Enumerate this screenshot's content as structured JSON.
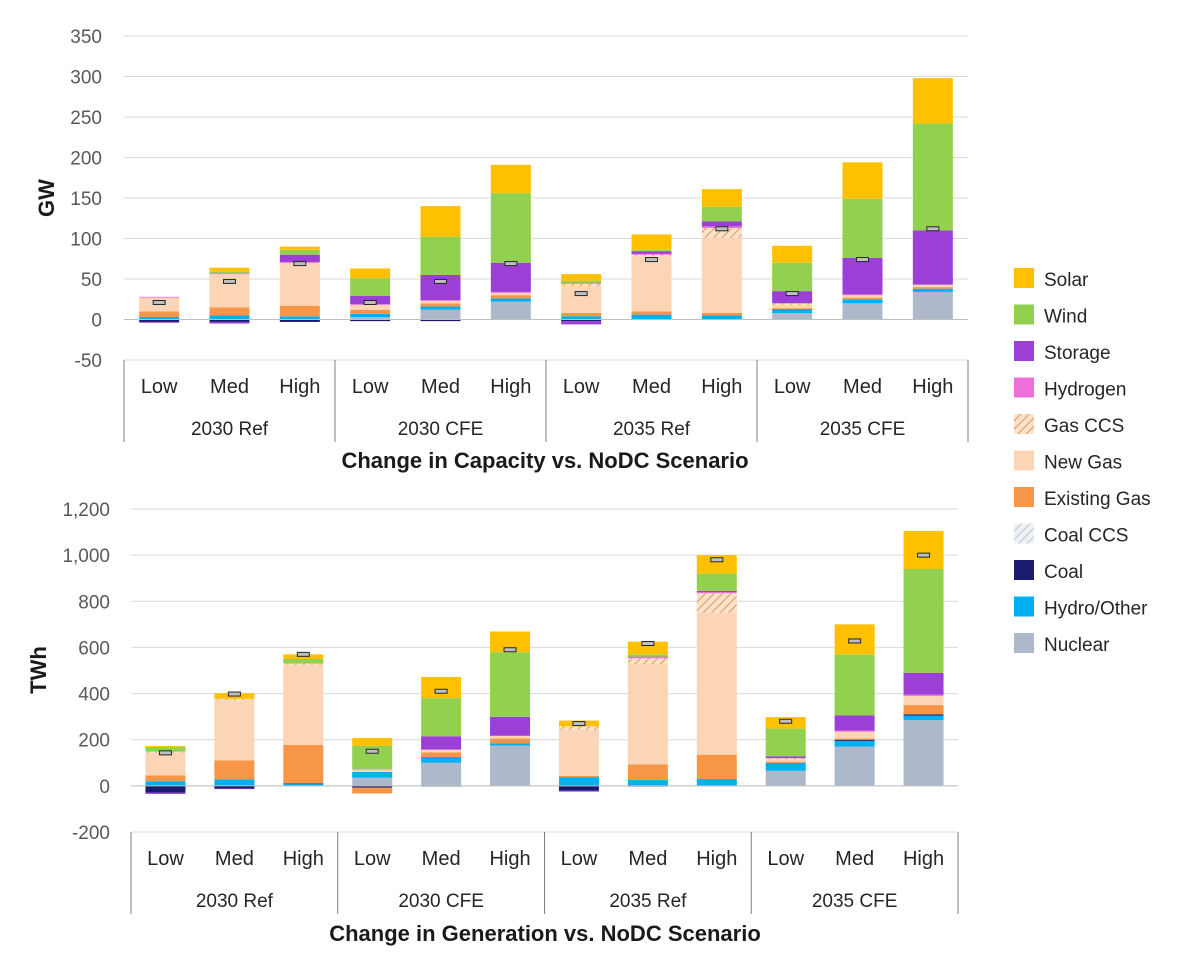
{
  "colors": {
    "Solar": "#FFC000",
    "Wind": "#92D050",
    "Storage": "#9B3FD6",
    "Hydrogen": "#EE6FD9",
    "Gas CCS": "#F6C49A",
    "New Gas": "#FBD5B5",
    "Existing Gas": "#F79646",
    "Coal CCS": "#D3DDE3",
    "Coal": "#1A1A6E",
    "Hydro/Other": "#00B0F0",
    "Nuclear": "#ADB9CA"
  },
  "legend": [
    "Solar",
    "Wind",
    "Storage",
    "Hydrogen",
    "Gas CCS",
    "New Gas",
    "Existing Gas",
    "Coal CCS",
    "Coal",
    "Hydro/Other",
    "Nuclear"
  ],
  "chart_data": [
    {
      "type": "bar",
      "stacked": true,
      "title": "Change in Capacity vs. NoDC Scenario",
      "xlabel": "Change in Capacity vs. NoDC Scenario",
      "ylabel": "GW",
      "ylim": [
        -50,
        350
      ],
      "yticks": [
        -50,
        0,
        50,
        100,
        150,
        200,
        250,
        300,
        350
      ],
      "yticklabels": [
        "-50",
        "0",
        "50",
        "100",
        "150",
        "200",
        "250",
        "300",
        "350"
      ],
      "groups": [
        "2030 Ref",
        "2030 CFE",
        "2035 Ref",
        "2035 CFE"
      ],
      "categories": [
        "Low",
        "Med",
        "High",
        "Low",
        "Med",
        "High",
        "Low",
        "Med",
        "High",
        "Low",
        "Med",
        "High"
      ],
      "series": [
        {
          "name": "Nuclear",
          "values": [
            0,
            0,
            0,
            3,
            12,
            22,
            0,
            0,
            0,
            8,
            20,
            34
          ]
        },
        {
          "name": "Hydro/Other",
          "values": [
            3,
            5,
            4,
            4,
            4,
            4,
            4,
            6,
            5,
            5,
            5,
            4
          ]
        },
        {
          "name": "Coal",
          "values": [
            -3,
            -3,
            -3,
            -2,
            -2,
            0,
            -2,
            0,
            0,
            0,
            0,
            0
          ]
        },
        {
          "name": "Coal CCS",
          "values": [
            0,
            0,
            0,
            0,
            0,
            0,
            0,
            0,
            0,
            0,
            0,
            0
          ]
        },
        {
          "name": "Existing Gas",
          "values": [
            7,
            10,
            13,
            5,
            4,
            4,
            4,
            4,
            3,
            1,
            2,
            2
          ]
        },
        {
          "name": "New Gas",
          "values": [
            17,
            41,
            53,
            6,
            3,
            3,
            33,
            68,
            93,
            4,
            3,
            3
          ]
        },
        {
          "name": "Gas CCS",
          "values": [
            0,
            0,
            0,
            0,
            0,
            0,
            3,
            2,
            12,
            2,
            0,
            0
          ]
        },
        {
          "name": "Hydrogen",
          "values": [
            1,
            1,
            1,
            1,
            1,
            1,
            1,
            1,
            2,
            0,
            1,
            0
          ]
        },
        {
          "name": "Storage",
          "values": [
            -1,
            -2,
            9,
            10,
            31,
            36,
            -4,
            3,
            6,
            15,
            45,
            67
          ]
        },
        {
          "name": "Wind",
          "values": [
            0,
            2,
            6,
            22,
            47,
            86,
            3,
            2,
            18,
            35,
            73,
            132
          ]
        },
        {
          "name": "Solar",
          "values": [
            0,
            5,
            4,
            12,
            38,
            35,
            8,
            19,
            22,
            21,
            45,
            56
          ]
        }
      ],
      "net_total": [
        21,
        47,
        69,
        21,
        47,
        69,
        32,
        74,
        112,
        32,
        74,
        112
      ]
    },
    {
      "type": "bar",
      "stacked": true,
      "title": "Change in Generation vs. NoDC Scenario",
      "xlabel": "Change in Generation vs. NoDC Scenario",
      "ylabel": "TWh",
      "ylim": [
        -200,
        1200
      ],
      "yticks": [
        -200,
        0,
        200,
        400,
        600,
        800,
        1000,
        1200
      ],
      "yticklabels": [
        "-200",
        "0",
        "200",
        "400",
        "600",
        "800",
        "1,000",
        "1,200"
      ],
      "groups": [
        "2030 Ref",
        "2030 CFE",
        "2035 Ref",
        "2035 CFE"
      ],
      "categories": [
        "Low",
        "Med",
        "High",
        "Low",
        "Med",
        "High",
        "Low",
        "Med",
        "High",
        "Low",
        "Med",
        "High"
      ],
      "series": [
        {
          "name": "Nuclear",
          "values": [
            0,
            0,
            0,
            35,
            100,
            175,
            0,
            0,
            0,
            65,
            170,
            285
          ]
        },
        {
          "name": "Hydro/Other",
          "values": [
            20,
            28,
            8,
            25,
            25,
            10,
            38,
            25,
            30,
            35,
            25,
            20
          ]
        },
        {
          "name": "Coal",
          "values": [
            -30,
            -12,
            2,
            -8,
            -3,
            0,
            -20,
            -3,
            0,
            0,
            5,
            5
          ]
        },
        {
          "name": "Coal CCS",
          "values": [
            0,
            0,
            0,
            0,
            0,
            0,
            0,
            0,
            0,
            0,
            0,
            0
          ]
        },
        {
          "name": "Existing Gas",
          "values": [
            25,
            82,
            167,
            -25,
            20,
            20,
            5,
            68,
            105,
            5,
            5,
            40
          ]
        },
        {
          "name": "New Gas",
          "values": [
            98,
            262,
            348,
            12,
            12,
            12,
            200,
            435,
            615,
            10,
            30,
            40
          ]
        },
        {
          "name": "Gas CCS",
          "values": [
            5,
            5,
            5,
            0,
            0,
            0,
            15,
            25,
            85,
            5,
            0,
            0
          ]
        },
        {
          "name": "Hydrogen",
          "values": [
            0,
            0,
            0,
            0,
            0,
            0,
            0,
            5,
            5,
            0,
            5,
            5
          ]
        },
        {
          "name": "Storage",
          "values": [
            -5,
            -2,
            0,
            2,
            58,
            82,
            -5,
            2,
            5,
            8,
            65,
            95
          ]
        },
        {
          "name": "Wind",
          "values": [
            20,
            0,
            20,
            100,
            165,
            280,
            0,
            10,
            75,
            120,
            265,
            450
          ]
        },
        {
          "name": "Solar",
          "values": [
            5,
            25,
            20,
            33,
            92,
            90,
            25,
            55,
            80,
            50,
            130,
            165
          ]
        }
      ],
      "net_total": [
        143,
        398,
        570,
        150,
        410,
        590,
        270,
        617,
        980,
        280,
        628,
        1000
      ]
    }
  ]
}
